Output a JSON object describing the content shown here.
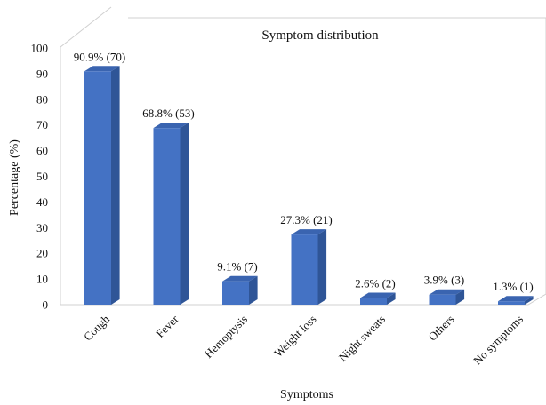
{
  "chart_data": {
    "type": "bar",
    "title": "Symptom distribution",
    "xlabel": "Symptoms",
    "ylabel": "Percentage (%)",
    "ylim": [
      0,
      100
    ],
    "yticks": [
      0,
      10,
      20,
      30,
      40,
      50,
      60,
      70,
      80,
      90,
      100
    ],
    "categories": [
      "Cough",
      "Fever",
      "Hemoptysis",
      "Weight loss",
      "Night sweats",
      "Others",
      "No symptoms"
    ],
    "values": [
      90.9,
      68.8,
      9.1,
      27.3,
      2.6,
      3.9,
      1.3
    ],
    "data_labels": [
      "90.9% (70)",
      "68.8% (53)",
      "9.1% (7)",
      "27.3% (21)",
      "2.6% (2)",
      "3.9% (3)",
      "1.3% (1)"
    ],
    "grid": false,
    "legend": "none",
    "colors": {
      "bar_front": "#4472c4",
      "bar_side": "#2f5597",
      "bar_top": "#3a64b0"
    }
  }
}
